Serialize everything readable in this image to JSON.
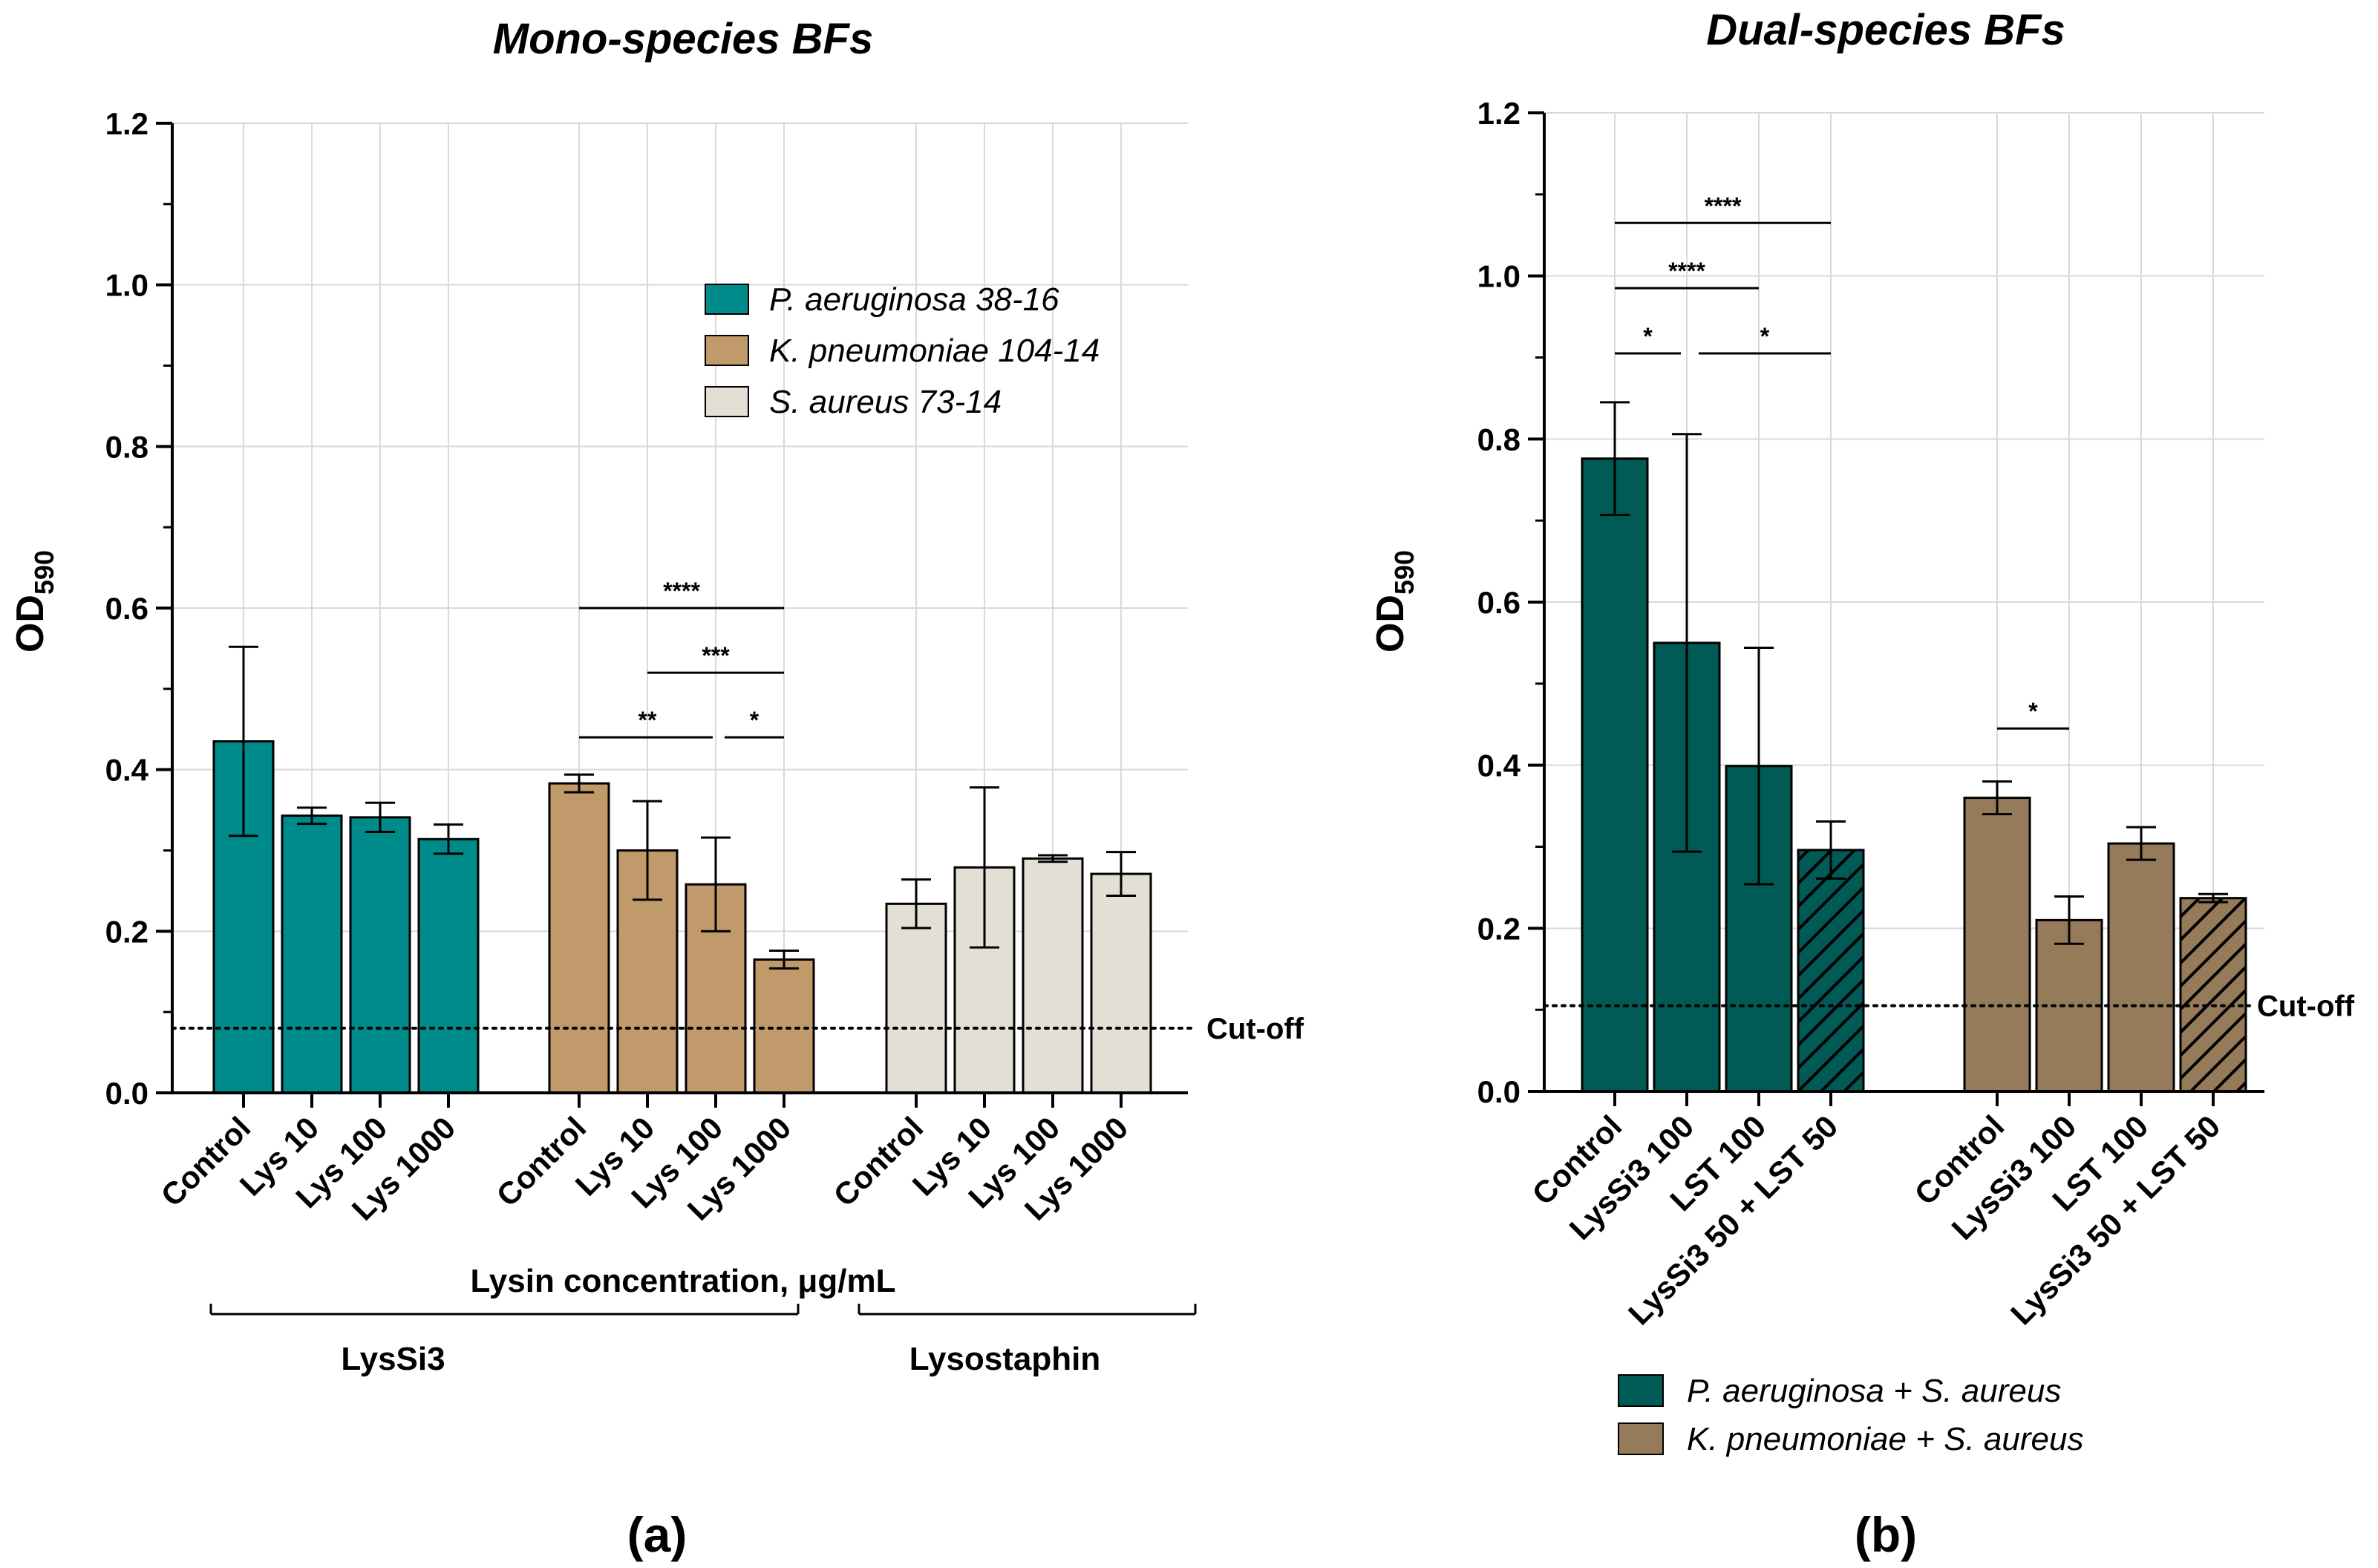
{
  "chart_data": [
    {
      "panel_label": "a",
      "type": "bar",
      "title": "Mono-species BFs",
      "ylabel_main": "OD",
      "ylabel_sub": "590",
      "xlabel": "Lysin concentration, μg/mL",
      "ylim": [
        0,
        1.2
      ],
      "yticks": [
        "0.0",
        "0.2",
        "0.4",
        "0.6",
        "0.8",
        "1.0",
        "1.2"
      ],
      "grid": true,
      "cutoff_value": 0.08,
      "cutoff_label": "Cut-off",
      "legend_position": "top-right",
      "groups": [
        {
          "name": "P. aeruginosa 38-16",
          "color": "#008b8b",
          "pattern": "solid",
          "categories": [
            "Control",
            "Lys 10",
            "Lys 100",
            "Lys 1000"
          ],
          "values": [
            0.435,
            0.343,
            0.341,
            0.314
          ],
          "errors": [
            0.117,
            0.01,
            0.018,
            0.018
          ]
        },
        {
          "name": "K. pneumoniae 104-14",
          "color": "#c09a6b",
          "pattern": "solid",
          "categories": [
            "Control",
            "Lys 10",
            "Lys 100",
            "Lys 1000"
          ],
          "values": [
            0.383,
            0.3,
            0.258,
            0.165
          ],
          "errors": [
            0.011,
            0.061,
            0.058,
            0.011
          ]
        },
        {
          "name": "S. aureus 73-14",
          "color": "#e3dfd5",
          "pattern": "solid",
          "categories": [
            "Control",
            "Lys 10",
            "Lys 100",
            "Lys 1000"
          ],
          "values": [
            0.234,
            0.279,
            0.29,
            0.271
          ],
          "errors": [
            0.03,
            0.099,
            0.004,
            0.027
          ]
        }
      ],
      "significance": [
        {
          "group": 1,
          "from": 0,
          "to": 3,
          "y": 0.6,
          "label": "****"
        },
        {
          "group": 1,
          "from": 1,
          "to": 3,
          "y": 0.52,
          "label": "***"
        },
        {
          "group": 1,
          "from": 0,
          "to": 2,
          "y": 0.44,
          "label": "**"
        },
        {
          "group": 1,
          "from": 2,
          "to": 3,
          "y": 0.44,
          "label": "*"
        }
      ],
      "brackets": [
        {
          "label": "LysSi3",
          "from_group": 0,
          "to_group": 1
        },
        {
          "label": "Lysostaphin",
          "from_group": 2,
          "to_group": 2
        }
      ]
    },
    {
      "panel_label": "b",
      "type": "bar",
      "title": "Dual-species BFs",
      "ylabel_main": "OD",
      "ylabel_sub": "590",
      "ylim": [
        0,
        1.2
      ],
      "yticks": [
        "0.0",
        "0.2",
        "0.4",
        "0.6",
        "0.8",
        "1.0",
        "1.2"
      ],
      "grid": true,
      "cutoff_value": 0.105,
      "cutoff_label": "Cut-off",
      "legend_position": "bottom",
      "groups": [
        {
          "name": "P. aeruginosa + S. aureus",
          "color": "#005a55",
          "categories": [
            "Control",
            "LysSi3 100",
            "LST 100",
            "LysSi3 50 + LST 50"
          ],
          "values": [
            0.776,
            0.55,
            0.399,
            0.296
          ],
          "errors": [
            0.069,
            0.256,
            0.145,
            0.035
          ],
          "patterns": [
            "solid",
            "solid",
            "solid",
            "hatched"
          ]
        },
        {
          "name": "K. pneumoniae + S. aureus",
          "color": "#957b59",
          "categories": [
            "Control",
            "LysSi3 100",
            "LST 100",
            "LysSi3 50 + LST 50"
          ],
          "values": [
            0.36,
            0.21,
            0.304,
            0.237
          ],
          "errors": [
            0.02,
            0.029,
            0.02,
            0.005
          ],
          "patterns": [
            "solid",
            "solid",
            "solid",
            "hatched"
          ]
        }
      ],
      "significance": [
        {
          "group": 0,
          "from": 0,
          "to": 3,
          "y": 1.065,
          "label": "****"
        },
        {
          "group": 0,
          "from": 0,
          "to": 2,
          "y": 0.985,
          "label": "****"
        },
        {
          "group": 0,
          "from": 0,
          "to": 1,
          "y": 0.905,
          "label": "*"
        },
        {
          "group": 0,
          "from": 1,
          "to": 3,
          "y": 0.905,
          "label": "*"
        },
        {
          "group": 1,
          "from": 0,
          "to": 1,
          "y": 0.445,
          "label": "*"
        }
      ]
    }
  ]
}
